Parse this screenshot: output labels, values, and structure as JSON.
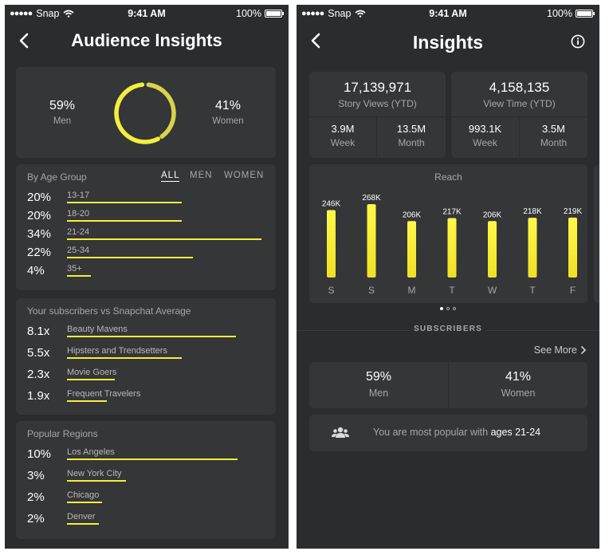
{
  "status": {
    "carrier": "Snap",
    "signal": "●●●●●",
    "time": "9:41 AM",
    "battery": "100%"
  },
  "left": {
    "title": "Audience Insights",
    "gender": {
      "men": {
        "value": "59%",
        "label": "Men"
      },
      "women": {
        "value": "41%",
        "label": "Women"
      },
      "men_fraction": 0.59
    },
    "age": {
      "title": "By Age Group",
      "tabs": [
        "ALL",
        "MEN",
        "WOMEN"
      ],
      "rows": [
        {
          "pct": "20%",
          "label": "13-17",
          "fraction": 0.2
        },
        {
          "pct": "20%",
          "label": "18-20",
          "fraction": 0.2
        },
        {
          "pct": "34%",
          "label": "21-24",
          "fraction": 0.34
        },
        {
          "pct": "22%",
          "label": "25-34",
          "fraction": 0.22
        },
        {
          "pct": "4%",
          "label": "35+",
          "fraction": 0.04
        }
      ]
    },
    "subscribers": {
      "title": "Your subscribers vs Snapchat Average",
      "rows": [
        {
          "pct": "8.1x",
          "label": "Beauty Mavens",
          "fraction": 0.81
        },
        {
          "pct": "5.5x",
          "label": "Hipsters and Trendsetters",
          "fraction": 0.55
        },
        {
          "pct": "2.3x",
          "label": "Movie Goers",
          "fraction": 0.23
        },
        {
          "pct": "1.9x",
          "label": "Frequent Travelers",
          "fraction": 0.19
        }
      ]
    },
    "regions": {
      "title": "Popular Regions",
      "rows": [
        {
          "pct": "10%",
          "label": "Los Angeles",
          "fraction": 0.1
        },
        {
          "pct": "3%",
          "label": "New York City",
          "fraction": 0.03
        },
        {
          "pct": "2%",
          "label": "Chicago",
          "fraction": 0.02
        },
        {
          "pct": "2%",
          "label": "Denver",
          "fraction": 0.02
        }
      ]
    }
  },
  "right": {
    "title": "Insights",
    "story_views": {
      "value": "17,139,971",
      "label": "Story Views (YTD)",
      "week": "3.9M",
      "week_label": "Week",
      "month": "13.5M",
      "month_label": "Month"
    },
    "view_time": {
      "value": "4,158,135",
      "label": "View Time (YTD)",
      "week": "993.1K",
      "week_label": "Week",
      "month": "3.5M",
      "month_label": "Month"
    },
    "chart_data": {
      "type": "bar",
      "title": "Reach",
      "categories": [
        "S",
        "S",
        "M",
        "T",
        "W",
        "T",
        "F"
      ],
      "values": [
        246,
        268,
        206,
        217,
        206,
        218,
        219
      ],
      "value_labels": [
        "246K",
        "268K",
        "206K",
        "217K",
        "206K",
        "218K",
        "219K"
      ],
      "units": "K",
      "ylim": [
        0,
        268
      ]
    },
    "subscribers_heading": "SUBSCRIBERS",
    "see_more": "See More",
    "men": {
      "value": "59%",
      "label": "Men"
    },
    "women": {
      "value": "41%",
      "label": "Women"
    },
    "popular_text": "You are most popular with",
    "popular_ages": "ages 21-24"
  }
}
